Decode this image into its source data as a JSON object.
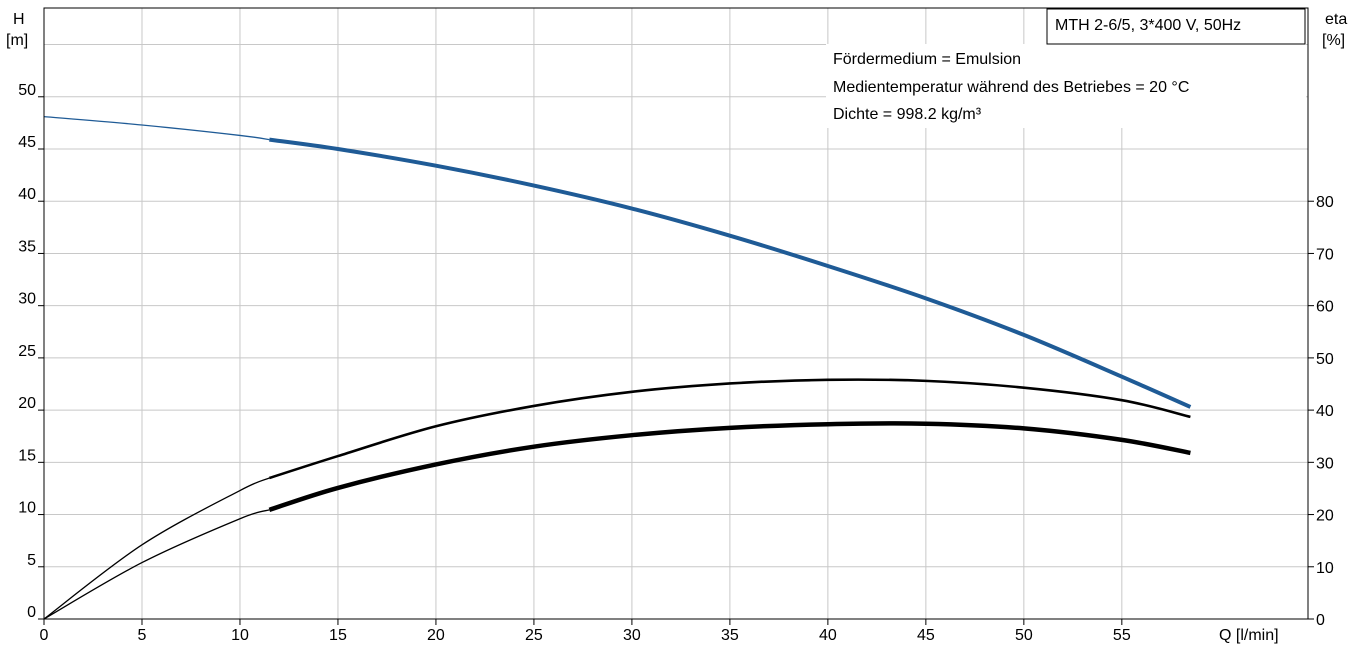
{
  "chart_data": {
    "type": "line",
    "title": "MTH 2-6/5, 3*400 V, 50Hz",
    "annotations": [
      "Fördermedium = Emulsion",
      "Medientemperatur während des Betriebes = 20 °C",
      "Dichte = 998.2 kg/m³"
    ],
    "xlabel": "Q [l/min]",
    "ylabel_left": {
      "name": "H",
      "unit": "[m]"
    },
    "ylabel_right": {
      "name": "eta",
      "unit": "[%]"
    },
    "xlim": [
      0,
      64.5
    ],
    "ylim_left": [
      0,
      58.5
    ],
    "ylim_right": [
      0,
      117
    ],
    "x_ticks": [
      0,
      5,
      10,
      15,
      20,
      25,
      30,
      35,
      40,
      45,
      50,
      55
    ],
    "y_ticks_left": [
      0,
      5,
      10,
      15,
      20,
      25,
      30,
      35,
      40,
      45,
      50
    ],
    "y_ticks_right": [
      0,
      10,
      20,
      30,
      40,
      50,
      60,
      70,
      80
    ],
    "grid": true,
    "series": [
      {
        "axis": "left",
        "color": "#1f5b96",
        "x": [
          0,
          5,
          10,
          11.5,
          15,
          20,
          25,
          30,
          35,
          40,
          45,
          50,
          55,
          58.5
        ],
        "y": [
          48.1,
          47.3,
          46.3,
          45.9,
          45.0,
          43.4,
          41.5,
          39.3,
          36.7,
          33.8,
          30.7,
          27.2,
          23.2,
          20.3
        ],
        "bold_from": 11.5
      },
      {
        "axis": "right",
        "color": "#000000",
        "x": [
          0,
          5,
          10,
          11.5,
          15,
          20,
          25,
          30,
          35,
          40,
          45,
          50,
          55,
          58.5
        ],
        "y": [
          0,
          14.2,
          24.6,
          27.0,
          31.2,
          36.9,
          40.8,
          43.5,
          45.1,
          45.8,
          45.6,
          44.3,
          41.9,
          38.7
        ],
        "bold_from": 11.5
      },
      {
        "axis": "right",
        "color": "#000000",
        "x": [
          0,
          5,
          10,
          11.5,
          15,
          20,
          25,
          30,
          35,
          40,
          45,
          50,
          55,
          58.5
        ],
        "y": [
          0,
          10.8,
          19.2,
          20.9,
          25.1,
          29.6,
          33.0,
          35.2,
          36.6,
          37.3,
          37.4,
          36.5,
          34.3,
          31.8
        ],
        "bold_from": 11.5,
        "heavy": true
      }
    ]
  }
}
